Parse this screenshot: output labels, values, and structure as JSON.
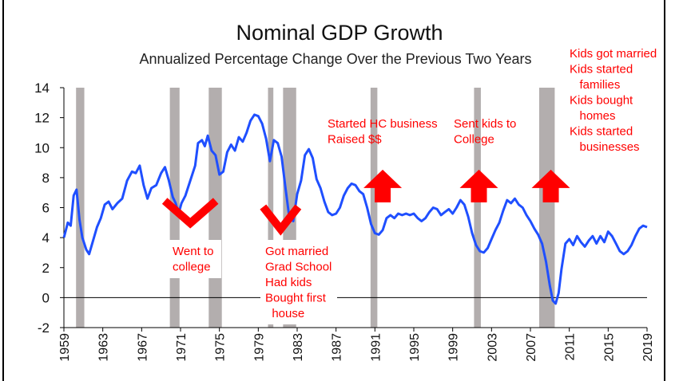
{
  "chart_data": {
    "type": "line",
    "title": "Nominal GDP Growth",
    "subtitle": "Annualized Percentage Change Over the Previous Two Years",
    "xlabel": "",
    "ylabel": "",
    "xlim": [
      1959,
      2019
    ],
    "ylim": [
      -2,
      14
    ],
    "x_ticks": [
      "1959",
      "1963",
      "1967",
      "1971",
      "1975",
      "1979",
      "1983",
      "1987",
      "1991",
      "1995",
      "1999",
      "2003",
      "2007",
      "2011",
      "2015",
      "2019"
    ],
    "y_ticks": [
      "-2",
      "0",
      "2",
      "4",
      "6",
      "8",
      "10",
      "12",
      "14"
    ],
    "grid": false,
    "line_color": "#1f4fff",
    "recession_color": "#b3aeae",
    "annotation_color": "#ff0000",
    "recessions": [
      [
        1960.25,
        1961.1
      ],
      [
        1969.9,
        1970.9
      ],
      [
        1973.9,
        1975.25
      ],
      [
        1980.0,
        1980.55
      ],
      [
        1981.55,
        1982.9
      ],
      [
        1990.55,
        1991.25
      ],
      [
        2001.2,
        2001.9
      ],
      [
        2007.9,
        2009.5
      ]
    ],
    "series": [
      {
        "values": [
          [
            1959.0,
            4.0
          ],
          [
            1959.4,
            5.0
          ],
          [
            1959.7,
            4.8
          ],
          [
            1960.0,
            6.8
          ],
          [
            1960.3,
            7.2
          ],
          [
            1960.6,
            5.2
          ],
          [
            1960.9,
            4.0
          ],
          [
            1961.3,
            3.2
          ],
          [
            1961.6,
            2.9
          ],
          [
            1962.0,
            3.8
          ],
          [
            1962.4,
            4.7
          ],
          [
            1962.8,
            5.3
          ],
          [
            1963.2,
            6.2
          ],
          [
            1963.6,
            6.4
          ],
          [
            1964.0,
            5.9
          ],
          [
            1964.5,
            6.3
          ],
          [
            1965.0,
            6.6
          ],
          [
            1965.5,
            7.8
          ],
          [
            1966.0,
            8.4
          ],
          [
            1966.4,
            8.3
          ],
          [
            1966.8,
            8.8
          ],
          [
            1967.2,
            7.5
          ],
          [
            1967.6,
            6.6
          ],
          [
            1968.0,
            7.3
          ],
          [
            1968.5,
            7.5
          ],
          [
            1969.0,
            8.3
          ],
          [
            1969.4,
            8.7
          ],
          [
            1969.8,
            7.8
          ],
          [
            1970.2,
            6.7
          ],
          [
            1970.5,
            6.3
          ],
          [
            1970.8,
            5.6
          ],
          [
            1971.1,
            6.3
          ],
          [
            1971.5,
            6.8
          ],
          [
            1972.0,
            7.8
          ],
          [
            1972.5,
            8.8
          ],
          [
            1972.8,
            10.3
          ],
          [
            1973.2,
            10.5
          ],
          [
            1973.5,
            10.1
          ],
          [
            1973.8,
            10.8
          ],
          [
            1974.2,
            9.8
          ],
          [
            1974.6,
            9.5
          ],
          [
            1975.0,
            8.2
          ],
          [
            1975.4,
            8.4
          ],
          [
            1975.8,
            9.7
          ],
          [
            1976.2,
            10.2
          ],
          [
            1976.6,
            9.8
          ],
          [
            1977.0,
            10.7
          ],
          [
            1977.4,
            10.4
          ],
          [
            1977.8,
            11.0
          ],
          [
            1978.2,
            11.8
          ],
          [
            1978.6,
            12.2
          ],
          [
            1979.0,
            12.1
          ],
          [
            1979.4,
            11.6
          ],
          [
            1979.8,
            10.6
          ],
          [
            1980.2,
            9.1
          ],
          [
            1980.6,
            10.5
          ],
          [
            1981.0,
            10.3
          ],
          [
            1981.4,
            9.4
          ],
          [
            1981.8,
            7.3
          ],
          [
            1982.2,
            5.3
          ],
          [
            1982.6,
            5.1
          ],
          [
            1983.0,
            6.9
          ],
          [
            1983.4,
            7.8
          ],
          [
            1983.8,
            9.5
          ],
          [
            1984.2,
            9.9
          ],
          [
            1984.6,
            9.3
          ],
          [
            1985.0,
            7.9
          ],
          [
            1985.4,
            7.3
          ],
          [
            1985.8,
            6.4
          ],
          [
            1986.2,
            5.7
          ],
          [
            1986.6,
            5.5
          ],
          [
            1987.0,
            5.6
          ],
          [
            1987.4,
            6.0
          ],
          [
            1987.8,
            6.8
          ],
          [
            1988.2,
            7.3
          ],
          [
            1988.6,
            7.6
          ],
          [
            1989.0,
            7.5
          ],
          [
            1989.4,
            7.1
          ],
          [
            1989.8,
            6.9
          ],
          [
            1990.2,
            6.0
          ],
          [
            1990.6,
            4.9
          ],
          [
            1991.0,
            4.3
          ],
          [
            1991.4,
            4.2
          ],
          [
            1991.8,
            4.5
          ],
          [
            1992.2,
            5.3
          ],
          [
            1992.6,
            5.5
          ],
          [
            1993.0,
            5.3
          ],
          [
            1993.4,
            5.6
          ],
          [
            1993.8,
            5.5
          ],
          [
            1994.2,
            5.6
          ],
          [
            1994.6,
            5.5
          ],
          [
            1995.0,
            5.6
          ],
          [
            1995.4,
            5.3
          ],
          [
            1995.8,
            5.1
          ],
          [
            1996.2,
            5.3
          ],
          [
            1996.6,
            5.7
          ],
          [
            1997.0,
            6.0
          ],
          [
            1997.4,
            5.9
          ],
          [
            1997.8,
            5.5
          ],
          [
            1998.2,
            5.7
          ],
          [
            1998.6,
            5.9
          ],
          [
            1999.0,
            5.6
          ],
          [
            1999.4,
            6.0
          ],
          [
            1999.8,
            6.5
          ],
          [
            2000.2,
            6.2
          ],
          [
            2000.6,
            5.4
          ],
          [
            2001.0,
            4.3
          ],
          [
            2001.4,
            3.5
          ],
          [
            2001.8,
            3.1
          ],
          [
            2002.2,
            3.0
          ],
          [
            2002.6,
            3.3
          ],
          [
            2003.0,
            3.9
          ],
          [
            2003.4,
            4.5
          ],
          [
            2003.8,
            5.0
          ],
          [
            2004.2,
            5.8
          ],
          [
            2004.6,
            6.5
          ],
          [
            2005.0,
            6.3
          ],
          [
            2005.4,
            6.6
          ],
          [
            2005.8,
            6.2
          ],
          [
            2006.2,
            6.0
          ],
          [
            2006.6,
            5.5
          ],
          [
            2007.0,
            5.1
          ],
          [
            2007.4,
            4.6
          ],
          [
            2007.8,
            4.2
          ],
          [
            2008.2,
            3.6
          ],
          [
            2008.6,
            2.4
          ],
          [
            2009.0,
            0.8
          ],
          [
            2009.3,
            -0.2
          ],
          [
            2009.6,
            -0.4
          ],
          [
            2009.9,
            0.3
          ],
          [
            2010.2,
            1.9
          ],
          [
            2010.6,
            3.6
          ],
          [
            2011.0,
            3.9
          ],
          [
            2011.4,
            3.5
          ],
          [
            2011.8,
            4.1
          ],
          [
            2012.2,
            3.7
          ],
          [
            2012.6,
            3.4
          ],
          [
            2013.0,
            3.8
          ],
          [
            2013.4,
            4.1
          ],
          [
            2013.8,
            3.6
          ],
          [
            2014.2,
            4.1
          ],
          [
            2014.6,
            3.7
          ],
          [
            2015.0,
            4.4
          ],
          [
            2015.4,
            4.1
          ],
          [
            2015.8,
            3.6
          ],
          [
            2016.2,
            3.1
          ],
          [
            2016.6,
            2.9
          ],
          [
            2017.0,
            3.1
          ],
          [
            2017.4,
            3.5
          ],
          [
            2017.8,
            4.1
          ],
          [
            2018.2,
            4.6
          ],
          [
            2018.6,
            4.8
          ],
          [
            2019.0,
            4.7
          ]
        ]
      }
    ],
    "baseline_at": 0,
    "annotations": [
      {
        "lines": [
          "Went to",
          "college"
        ],
        "marker": "check",
        "at": [
          1972.0,
          5.6
        ]
      },
      {
        "lines": [
          "Got married",
          "Grad School",
          "Had kids",
          "Bought first",
          "  house"
        ],
        "marker": "check",
        "at": [
          1981.3,
          5.2
        ]
      },
      {
        "lines": [
          "Started HC business",
          "Raised $$"
        ],
        "marker": "arrow",
        "at": [
          1991.8,
          7.2
        ]
      },
      {
        "lines": [
          "Sent kids to",
          "College"
        ],
        "marker": "arrow",
        "at": [
          2001.7,
          7.2
        ]
      },
      {
        "lines": [
          "Kids got married",
          "Kids started",
          "   families",
          "Kids bought",
          "   homes",
          "Kids started",
          "   businesses"
        ],
        "marker": "arrow",
        "at": [
          2009.1,
          7.2
        ]
      }
    ]
  }
}
